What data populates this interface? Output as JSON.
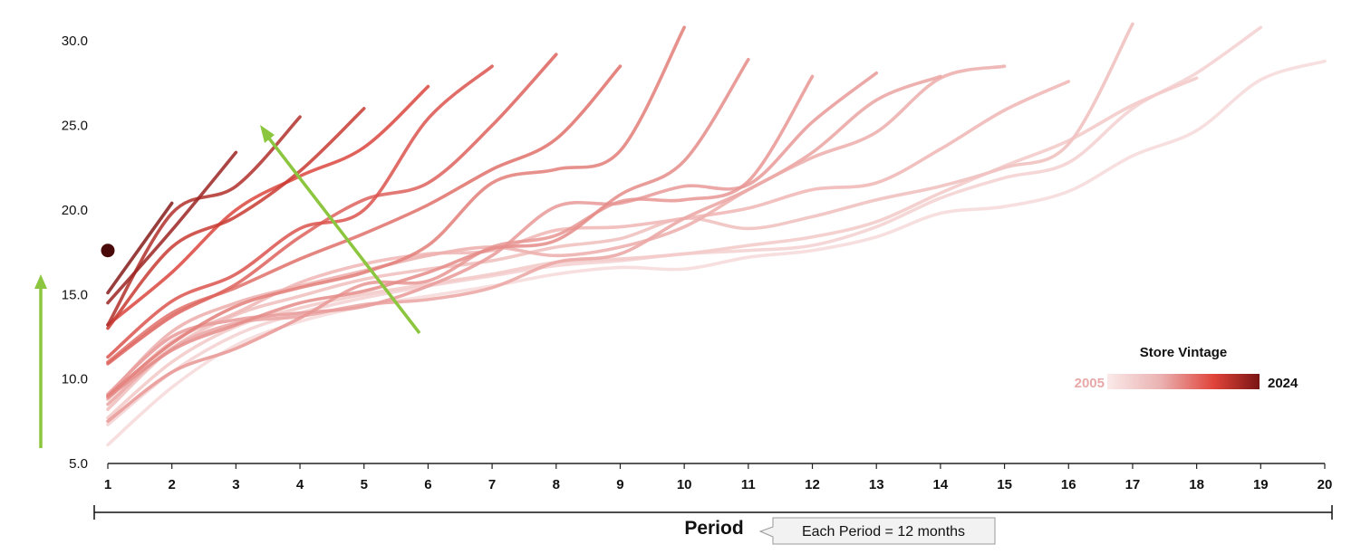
{
  "chart_data": {
    "type": "line",
    "xlabel": "Period",
    "ylabel": "",
    "xlim": [
      1,
      20
    ],
    "ylim": [
      5,
      31
    ],
    "x_ticks": [
      1,
      2,
      3,
      4,
      5,
      6,
      7,
      8,
      9,
      10,
      11,
      12,
      13,
      14,
      15,
      16,
      17,
      18,
      19,
      20
    ],
    "y_ticks": [
      5.0,
      10.0,
      15.0,
      20.0,
      25.0,
      30.0
    ],
    "y_tick_labels": [
      "5.0",
      "10.0",
      "15.0",
      "20.0",
      "25.0",
      "30.0"
    ],
    "note": "Each Period = 12 months",
    "legend": {
      "title": "Store Vintage",
      "min_label": "2005",
      "max_label": "2024",
      "placement": "right"
    },
    "colors": {
      "low": "#f7dcdc",
      "mid": "#e0443a",
      "high": "#7a1414",
      "arrow": "#8cc63f"
    },
    "series": [
      {
        "vintage": 2005,
        "x": [
          1,
          2,
          3,
          4,
          5,
          6,
          7,
          8,
          9,
          10,
          11,
          12,
          13,
          14,
          15,
          16,
          17,
          18,
          19,
          20
        ],
        "y": [
          6.1,
          9.5,
          12.0,
          13.4,
          14.3,
          14.9,
          15.5,
          16.2,
          16.6,
          16.5,
          17.2,
          17.6,
          18.4,
          19.8,
          20.2,
          21.1,
          23.2,
          24.7,
          27.7,
          28.8
        ]
      },
      {
        "vintage": 2006,
        "x": [
          1,
          2,
          3,
          4,
          5,
          6,
          7,
          8,
          9,
          10,
          11,
          12,
          13,
          14,
          15,
          16,
          17,
          18,
          19
        ],
        "y": [
          7.3,
          10.4,
          12.6,
          13.9,
          14.8,
          15.5,
          16.1,
          16.7,
          17.0,
          17.4,
          17.6,
          17.9,
          19.0,
          20.7,
          21.9,
          22.8,
          26.0,
          28.1,
          30.8
        ]
      },
      {
        "vintage": 2007,
        "x": [
          1,
          2,
          3,
          4,
          5,
          6,
          7,
          8,
          9,
          10,
          11,
          12,
          13,
          14,
          15,
          16,
          17,
          18
        ],
        "y": [
          7.7,
          11.0,
          13.1,
          14.2,
          15.0,
          15.6,
          16.2,
          16.9,
          17.1,
          17.4,
          17.9,
          18.4,
          19.3,
          21.0,
          22.6,
          24.1,
          26.2,
          27.8
        ]
      },
      {
        "vintage": 2008,
        "x": [
          1,
          2,
          3,
          4,
          5,
          6,
          7,
          8,
          9,
          10,
          11,
          12,
          13,
          14,
          15,
          16,
          17
        ],
        "y": [
          8.2,
          11.8,
          13.8,
          14.9,
          15.9,
          16.5,
          17.0,
          17.8,
          18.3,
          19.5,
          18.9,
          19.6,
          20.6,
          21.4,
          22.5,
          23.9,
          31.0
        ]
      },
      {
        "vintage": 2009,
        "x": [
          1,
          2,
          3,
          4,
          5,
          6,
          7,
          8,
          9,
          10,
          11,
          12,
          13,
          14,
          15,
          16
        ],
        "y": [
          8.8,
          12.2,
          13.9,
          15.7,
          16.8,
          17.4,
          17.6,
          18.8,
          19.0,
          19.5,
          20.1,
          21.2,
          21.6,
          23.6,
          25.9,
          27.6
        ]
      },
      {
        "vintage": 2010,
        "x": [
          1,
          2,
          3,
          4,
          5,
          6,
          7,
          8,
          9,
          10,
          11,
          12,
          13,
          14,
          15
        ],
        "y": [
          9.0,
          12.8,
          14.5,
          15.5,
          16.4,
          17.3,
          17.8,
          17.3,
          17.8,
          19.0,
          21.2,
          23.1,
          24.6,
          27.8,
          28.5
        ]
      },
      {
        "vintage": 2011,
        "x": [
          1,
          2,
          3,
          4,
          5,
          6,
          7,
          8,
          9,
          10,
          11,
          12,
          13,
          14
        ],
        "y": [
          8.5,
          11.8,
          13.3,
          13.7,
          14.4,
          14.7,
          15.4,
          16.9,
          17.4,
          19.5,
          21.2,
          23.4,
          26.5,
          27.9
        ]
      },
      {
        "vintage": 2012,
        "x": [
          1,
          2,
          3,
          4,
          5,
          6,
          7,
          8,
          9,
          10,
          11,
          12,
          13
        ],
        "y": [
          9.1,
          12.5,
          13.5,
          13.9,
          14.3,
          15.5,
          17.3,
          20.2,
          20.4,
          21.4,
          21.5,
          25.2,
          28.1
        ]
      },
      {
        "vintage": 2013,
        "x": [
          1,
          2,
          3,
          4,
          5,
          6,
          7,
          8,
          9,
          10,
          11,
          12
        ],
        "y": [
          7.5,
          10.4,
          11.8,
          13.6,
          15.6,
          15.8,
          17.8,
          18.5,
          20.5,
          20.6,
          21.7,
          27.9
        ]
      },
      {
        "vintage": 2014,
        "x": [
          1,
          2,
          3,
          4,
          5,
          6,
          7,
          8,
          9,
          10,
          11
        ],
        "y": [
          8.9,
          11.7,
          13.2,
          14.5,
          15.2,
          16.3,
          17.7,
          18.2,
          20.9,
          22.9,
          28.9
        ]
      },
      {
        "vintage": 2015,
        "x": [
          1,
          2,
          3,
          4,
          5,
          6,
          7,
          8,
          9,
          10
        ],
        "y": [
          9.0,
          12.1,
          14.3,
          15.4,
          16.3,
          17.9,
          21.6,
          22.4,
          23.5,
          30.8
        ]
      },
      {
        "vintage": 2016,
        "x": [
          1,
          2,
          3,
          4,
          5,
          6,
          7,
          8,
          9
        ],
        "y": [
          11.0,
          13.9,
          15.4,
          17.1,
          18.6,
          20.3,
          22.4,
          24.2,
          28.5
        ]
      },
      {
        "vintage": 2017,
        "x": [
          1,
          2,
          3,
          4,
          5,
          6,
          7,
          8
        ],
        "y": [
          10.9,
          13.7,
          15.6,
          18.4,
          20.6,
          21.6,
          25.0,
          29.2
        ]
      },
      {
        "vintage": 2018,
        "x": [
          1,
          2,
          3,
          4,
          5,
          6,
          7
        ],
        "y": [
          11.3,
          14.6,
          16.2,
          18.9,
          20.0,
          25.4,
          28.5
        ]
      },
      {
        "vintage": 2019,
        "x": [
          1,
          2,
          3,
          4,
          5,
          6
        ],
        "y": [
          13.2,
          16.3,
          20.0,
          22.0,
          23.7,
          27.3
        ]
      },
      {
        "vintage": 2020,
        "x": [
          1,
          2,
          3,
          4,
          5
        ],
        "y": [
          13.0,
          17.8,
          19.6,
          22.3,
          26.0
        ]
      },
      {
        "vintage": 2021,
        "x": [
          1,
          2,
          3,
          4
        ],
        "y": [
          13.2,
          19.8,
          21.4,
          25.5
        ]
      },
      {
        "vintage": 2022,
        "x": [
          1,
          2,
          3
        ],
        "y": [
          14.5,
          18.8,
          23.4
        ]
      },
      {
        "vintage": 2023,
        "x": [
          1,
          2
        ],
        "y": [
          15.1,
          20.4
        ]
      },
      {
        "vintage": 2024,
        "x": [
          1
        ],
        "y": [
          17.6
        ]
      }
    ]
  }
}
